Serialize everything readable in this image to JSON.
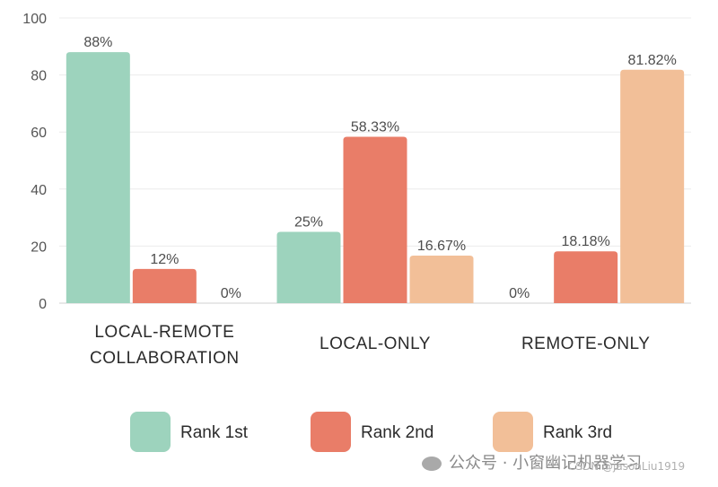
{
  "chart_data": {
    "type": "bar",
    "title": "",
    "xlabel": "",
    "ylabel": "",
    "ylim": [
      0,
      100
    ],
    "yticks": [
      0,
      20,
      40,
      60,
      80,
      100
    ],
    "grid": true,
    "legend_position": "bottom",
    "categories": [
      [
        "LOCAL-REMOTE",
        "COLLABORATION"
      ],
      [
        "LOCAL-ONLY"
      ],
      [
        "REMOTE-ONLY"
      ]
    ],
    "series": [
      {
        "name": "Rank 1st",
        "color": "#9dd3bd",
        "values": [
          88,
          25,
          0
        ],
        "labels": [
          "88%",
          "25%",
          "0%"
        ]
      },
      {
        "name": "Rank 2nd",
        "color": "#e97d68",
        "values": [
          12,
          58.33,
          18.18
        ],
        "labels": [
          "12%",
          "58.33%",
          "18.18%"
        ]
      },
      {
        "name": "Rank 3rd",
        "color": "#f2bf98",
        "values": [
          0,
          16.67,
          81.82
        ],
        "labels": [
          "0%",
          "16.67%",
          "81.82%"
        ]
      }
    ]
  },
  "watermark": {
    "text": "公众号 · 小窗幽记机器学习",
    "icon": "wechat-icon"
  },
  "credit": {
    "text": "CSDN @jasonLiu1919"
  }
}
